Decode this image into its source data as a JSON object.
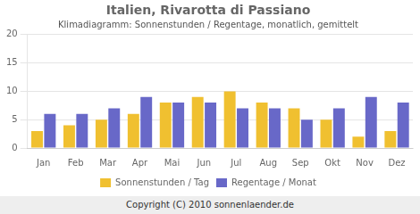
{
  "chart_data": {
    "type": "bar",
    "title": "Italien, Rivarotta di Passiano",
    "subtitle": "Klimadiagramm: Sonnenstunden / Regentage, monatlich, gemittelt",
    "categories": [
      "Jan",
      "Feb",
      "Mar",
      "Apr",
      "Mai",
      "Jun",
      "Jul",
      "Aug",
      "Sep",
      "Okt",
      "Nov",
      "Dez"
    ],
    "series": [
      {
        "name": "Sonnenstunden / Tag",
        "color": "#f0c030",
        "values": [
          3,
          4,
          5,
          6,
          8,
          9,
          10,
          8,
          7,
          5,
          2,
          3
        ]
      },
      {
        "name": "Regentage / Monat",
        "color": "#6868c8",
        "values": [
          6,
          6,
          7,
          9,
          8,
          8,
          7,
          7,
          5,
          7,
          9,
          8
        ]
      }
    ],
    "ylim": [
      0,
      20
    ],
    "yticks": [
      0,
      5,
      10,
      15,
      20
    ],
    "grid": true,
    "legend": "bottom",
    "annotations": [
      "Copyright (C) 2010 sonnenlaender.de"
    ]
  }
}
